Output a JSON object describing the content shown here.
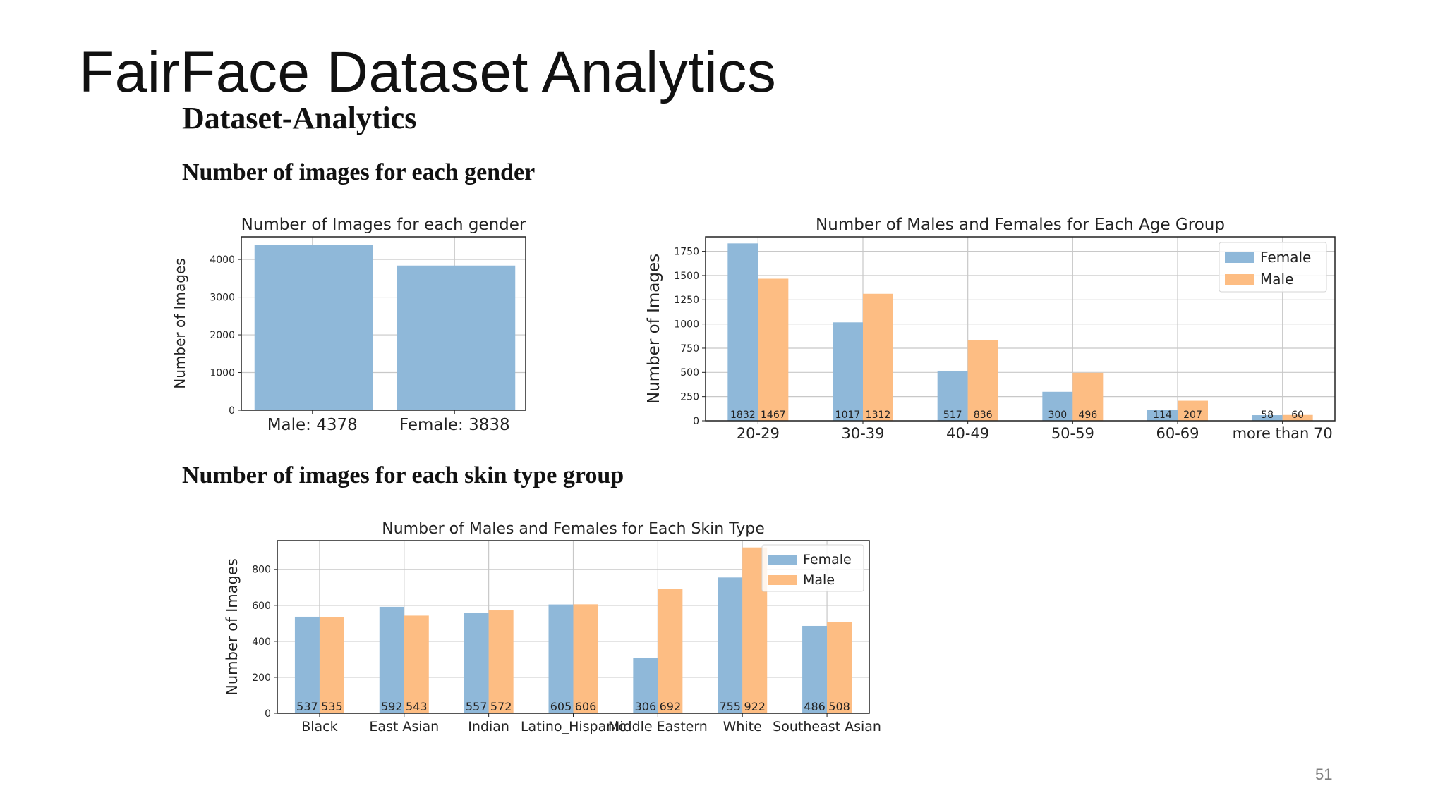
{
  "slide": {
    "title": "FairFace Dataset Analytics",
    "subtitle": "Dataset-Analytics",
    "section_gender": "Number of images for each gender",
    "section_skin": "Number of images for each skin type group",
    "page_number": "51"
  },
  "colors": {
    "female": "#8fb8d9",
    "male": "#fdbd83",
    "grid": "#c8c8c8"
  },
  "chart_data": [
    {
      "id": "gender",
      "type": "bar",
      "title": "Number of Images for each gender",
      "ylabel": "Number of Images",
      "categories": [
        "Male: 4378",
        "Female: 3838"
      ],
      "values": [
        4378,
        3838
      ],
      "yticks": [
        0,
        1000,
        2000,
        3000,
        4000
      ],
      "ylim": [
        0,
        4600
      ],
      "grid": true
    },
    {
      "id": "age",
      "type": "bar",
      "title": "Number of Males and Females for Each Age Group",
      "ylabel": "Number of Images",
      "categories": [
        "20-29",
        "30-39",
        "40-49",
        "50-59",
        "60-69",
        "more than 70"
      ],
      "series": [
        {
          "name": "Female",
          "values": [
            1832,
            1017,
            517,
            300,
            114,
            58
          ]
        },
        {
          "name": "Male",
          "values": [
            1467,
            1312,
            836,
            496,
            207,
            60
          ]
        }
      ],
      "yticks": [
        0,
        250,
        500,
        750,
        1000,
        1250,
        1500,
        1750
      ],
      "ylim": [
        0,
        1900
      ],
      "legend": "top-right",
      "grid": true
    },
    {
      "id": "skin",
      "type": "bar",
      "title": "Number of Males and Females for Each Skin Type",
      "ylabel": "Number of Images",
      "categories": [
        "Black",
        "East Asian",
        "Indian",
        "Latino_Hispanic",
        "Middle Eastern",
        "White",
        "Southeast Asian"
      ],
      "series": [
        {
          "name": "Female",
          "values": [
            537,
            592,
            557,
            605,
            306,
            755,
            486
          ]
        },
        {
          "name": "Male",
          "values": [
            535,
            543,
            572,
            606,
            692,
            922,
            508
          ]
        }
      ],
      "yticks": [
        0,
        200,
        400,
        600,
        800
      ],
      "ylim": [
        0,
        960
      ],
      "legend": "top-right",
      "grid": true
    }
  ]
}
